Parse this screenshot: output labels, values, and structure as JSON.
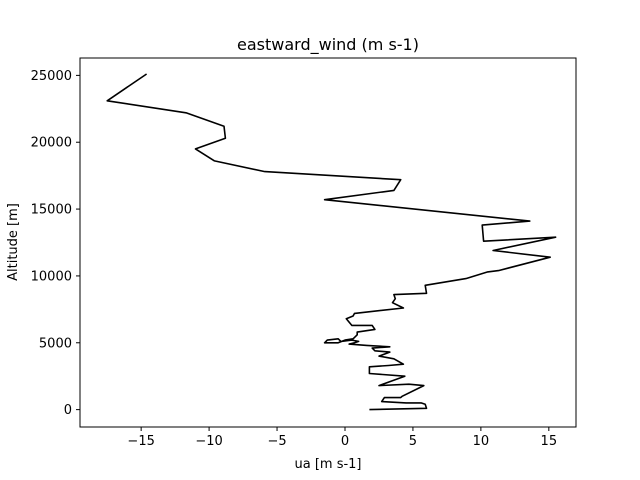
{
  "chart_data": {
    "type": "line",
    "title": "eastward_wind (m s-1)",
    "xlabel": "ua [m s-1]",
    "ylabel": "Altitude [m]",
    "xlim": [
      -19.5,
      17
    ],
    "ylim": [
      -1300,
      26300
    ],
    "xticks": [
      -15,
      -10,
      -5,
      0,
      5,
      10,
      15
    ],
    "xtick_labels": [
      "−15",
      "−10",
      "−5",
      "0",
      "5",
      "10",
      "15"
    ],
    "yticks": [
      0,
      5000,
      10000,
      15000,
      20000,
      25000
    ],
    "ytick_labels": [
      "0",
      "5000",
      "10000",
      "15000",
      "20000",
      "25000"
    ],
    "grid": false,
    "color": "#000000",
    "series": [
      {
        "x": [
          1.8,
          6.0,
          5.9,
          5.6,
          4.5,
          2.7,
          2.9,
          4.1,
          4.2,
          5.8,
          4.7,
          2.5,
          4.4,
          1.8,
          1.8,
          3.2,
          4.3,
          3.6,
          2.5,
          3.3,
          2.2,
          2.0,
          3.3,
          1.6,
          0.3,
          0.7,
          1.0,
          0.5,
          -0.3,
          -0.5,
          -1.3,
          -1.5,
          -0.5,
          0.0,
          0.6,
          0.9,
          0.9,
          2.2,
          2.0,
          0.5,
          0.1,
          0.6,
          0.7,
          4.3,
          3.5,
          3.7,
          3.6,
          6.0,
          5.9,
          8.9,
          10.5,
          11.3,
          15.1,
          10.9,
          15.5,
          10.2,
          10.1,
          13.6,
          -1.5,
          3.6,
          4.1,
          -5.9,
          -9.6,
          -11.0,
          -8.8,
          -8.9,
          -11.7,
          -17.5,
          -14.6
        ],
        "y": [
          0,
          100,
          400,
          500,
          500,
          600,
          900,
          900,
          1000,
          1800,
          1900,
          1800,
          2500,
          2700,
          3200,
          3300,
          3400,
          3800,
          4000,
          4300,
          4400,
          4600,
          4700,
          4800,
          4900,
          5000,
          5100,
          5200,
          5100,
          5300,
          5200,
          5000,
          5000,
          5200,
          5300,
          5600,
          5800,
          6000,
          6300,
          6300,
          6800,
          7000,
          7200,
          7600,
          8000,
          8300,
          8600,
          8700,
          9300,
          9800,
          10300,
          10400,
          11400,
          11900,
          12900,
          12600,
          13800,
          14100,
          15700,
          16400,
          17200,
          17800,
          18600,
          19500,
          20300,
          21200,
          22200,
          23100,
          25100
        ]
      }
    ]
  }
}
